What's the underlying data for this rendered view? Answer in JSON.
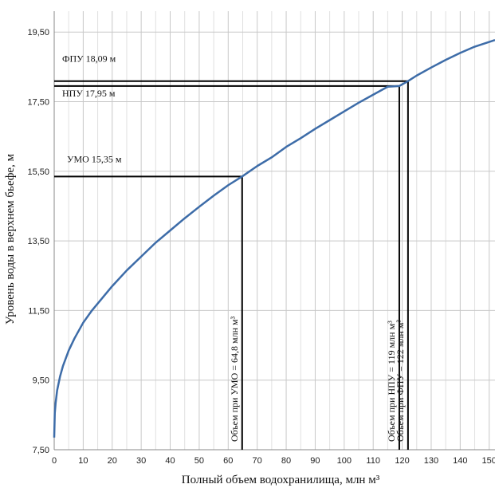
{
  "chart_data": {
    "type": "line",
    "xlabel": "Полный объем водохранилища, млн м³",
    "ylabel": "Уровень воды в верхнем бьефе, м",
    "xlim": [
      0,
      152
    ],
    "ylim": [
      7.5,
      20.1
    ],
    "x_ticks": [
      0,
      10,
      20,
      30,
      40,
      50,
      60,
      70,
      80,
      90,
      100,
      110,
      120,
      130,
      140,
      150
    ],
    "y_ticks": [
      "7,50",
      "9,50",
      "11,50",
      "13,50",
      "15,50",
      "17,50",
      "19,50"
    ],
    "y_tick_values": [
      7.5,
      9.5,
      11.5,
      13.5,
      15.5,
      17.5,
      19.5
    ],
    "grid": true,
    "series_color": "#3d6ca8",
    "series": [
      {
        "x": [
          0,
          0.2,
          0.5,
          1,
          2,
          3,
          5,
          7,
          10,
          13,
          16,
          20,
          25,
          30,
          35,
          40,
          45,
          50,
          55,
          60,
          64.8,
          70,
          75,
          80,
          85,
          90,
          95,
          100,
          105,
          110,
          115,
          119,
          122,
          125,
          130,
          135,
          140,
          145,
          152
        ],
        "y": [
          7.85,
          8.55,
          8.85,
          9.2,
          9.6,
          9.9,
          10.35,
          10.7,
          11.15,
          11.5,
          11.8,
          12.2,
          12.65,
          13.05,
          13.45,
          13.8,
          14.15,
          14.48,
          14.8,
          15.1,
          15.35,
          15.65,
          15.9,
          16.2,
          16.45,
          16.72,
          16.97,
          17.22,
          17.47,
          17.7,
          17.93,
          17.95,
          18.09,
          18.25,
          18.48,
          18.7,
          18.9,
          19.08,
          19.27
        ]
      }
    ],
    "annotations": [
      {
        "label": "ФПУ 18,09 м",
        "level": 18.09,
        "volume": 122,
        "vlabel": "Объем при ФПУ = 122 млн м³"
      },
      {
        "label": "НПУ 17,95 м",
        "level": 17.95,
        "volume": 119,
        "vlabel": "Объем при НПУ =  119 млн м³"
      },
      {
        "label": "УМО 15,35 м",
        "level": 15.35,
        "volume": 64.8,
        "vlabel": "Объем при УМО = 64,8  млн м³"
      }
    ]
  }
}
